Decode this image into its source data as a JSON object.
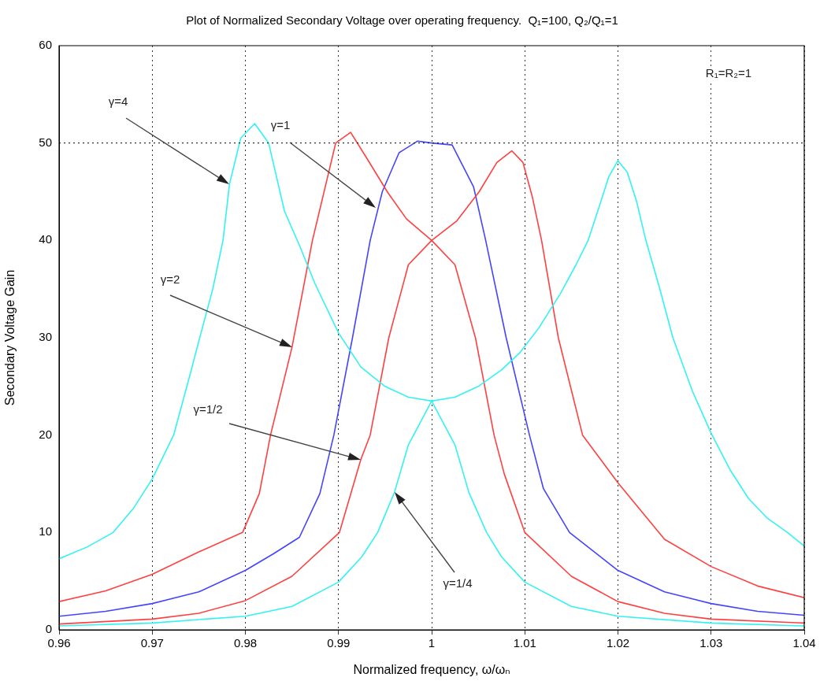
{
  "chart_data": {
    "type": "line",
    "title": "Plot of Normalized Secondary Voltage over operating frequency.  Q₁=100, Q₂/Q₁=1",
    "xlabel": "Normalized frequency, ω/ωₙ",
    "ylabel": "Secondary Voltage Gain",
    "xlim": [
      0.96,
      1.04
    ],
    "xticks": [
      0.96,
      0.97,
      0.98,
      0.99,
      1,
      1.01,
      1.02,
      1.03,
      1.04
    ],
    "ylim": [
      0,
      60
    ],
    "yticks": [
      0,
      10,
      20,
      30,
      40,
      50,
      60
    ],
    "grid": "x",
    "ref_lines": [
      {
        "axis": "y",
        "value": 50,
        "line_style": "dotted",
        "color": "#000000"
      }
    ],
    "series": [
      {
        "color": "#33f2f2",
        "x": [
          0.96,
          0.963,
          0.9658,
          0.968,
          0.97,
          0.9723,
          0.974,
          0.9751,
          0.9765,
          0.9776,
          0.9783,
          0.9795,
          0.981,
          0.9825,
          0.9842,
          0.9858,
          0.9875,
          0.99,
          0.9924,
          0.995,
          0.9975,
          1.0,
          1.0025,
          1.005,
          1.0075,
          1.0095,
          1.0115,
          1.0138,
          1.0155,
          1.0168,
          1.018,
          1.019,
          1.02,
          1.021,
          1.022,
          1.023,
          1.0245,
          1.0259,
          1.028,
          1.03,
          1.032,
          1.034,
          1.036,
          1.0382,
          1.04
        ],
        "values": [
          7.3,
          8.5,
          10,
          12.5,
          15.5,
          20,
          26,
          30,
          35,
          40,
          45.8,
          50.5,
          52,
          50,
          43,
          39.5,
          35.5,
          30.5,
          27,
          25,
          23.9,
          23.5,
          23.9,
          25,
          26.7,
          28.5,
          31,
          34.5,
          37.5,
          40,
          43.5,
          46.5,
          48.2,
          47,
          44,
          40,
          35,
          30,
          24.5,
          20.2,
          16.5,
          13.5,
          11.5,
          10,
          8.6
        ]
      },
      {
        "color": "#ff4040",
        "x": [
          0.96,
          0.965,
          0.97,
          0.975,
          0.9797,
          0.9815,
          0.9827,
          0.985,
          0.9872,
          0.9897,
          0.9913,
          0.993,
          0.9953,
          0.9973,
          1.0,
          1.0027,
          1.0051,
          1.007,
          1.0086,
          1.0098,
          1.0108,
          1.0118,
          1.0136,
          1.0162,
          1.02,
          1.025,
          1.03,
          1.035,
          1.04
        ],
        "values": [
          2.9,
          4,
          5.7,
          8,
          10,
          14,
          20,
          29,
          40,
          50,
          51.1,
          48.5,
          44.9,
          42.2,
          40,
          42,
          45,
          48,
          49.2,
          48,
          44.5,
          40,
          30,
          20,
          15.1,
          9.3,
          6.5,
          4.5,
          3.3
        ]
      },
      {
        "color": "#4444ff",
        "x": [
          0.96,
          0.965,
          0.97,
          0.975,
          0.98,
          0.983,
          0.9858,
          0.988,
          0.9895,
          0.9915,
          0.9934,
          0.9947,
          0.9965,
          0.9985,
          1.0,
          1.0022,
          1.0045,
          1.0058,
          1.008,
          1.0105,
          1.012,
          1.0148,
          1.02,
          1.025,
          1.03,
          1.035,
          1.04
        ],
        "values": [
          1.4,
          1.9,
          2.7,
          3.9,
          6.1,
          7.8,
          9.5,
          14,
          20,
          30,
          40,
          45,
          49,
          50.2,
          50,
          49.8,
          45.5,
          40,
          30,
          20,
          14.5,
          10,
          6.1,
          3.9,
          2.7,
          1.9,
          1.5
        ]
      },
      {
        "color": "#ff4040",
        "x": [
          0.96,
          0.97,
          0.975,
          0.98,
          0.985,
          0.9901,
          0.9924,
          0.9934,
          0.9954,
          0.9975,
          1.0,
          1.0025,
          1.0047,
          1.0067,
          1.0078,
          1.01,
          1.015,
          1.02,
          1.025,
          1.03,
          1.04
        ],
        "values": [
          0.6,
          1.1,
          1.7,
          3,
          5.5,
          10,
          17.5,
          20,
          30,
          37.5,
          40,
          37.5,
          30,
          20,
          16,
          10,
          5.5,
          2.9,
          1.7,
          1.1,
          0.7
        ]
      },
      {
        "color": "#33f2f2",
        "x": [
          0.96,
          0.97,
          0.98,
          0.985,
          0.99,
          0.9925,
          0.9942,
          0.996,
          0.9975,
          1.0,
          1.0025,
          1.004,
          1.0059,
          1.0075,
          1.01,
          1.015,
          1.02,
          1.03,
          1.04
        ],
        "values": [
          0.4,
          0.7,
          1.4,
          2.4,
          4.9,
          7.5,
          10,
          14.1,
          19,
          23.5,
          19,
          14.1,
          10,
          7.5,
          4.9,
          2.4,
          1.4,
          0.7,
          0.4
        ]
      }
    ],
    "annotations": [
      "γ=4",
      "γ=1",
      "γ=2",
      "γ=1/2",
      "γ=1/4",
      "R₁=R₂=1"
    ]
  }
}
